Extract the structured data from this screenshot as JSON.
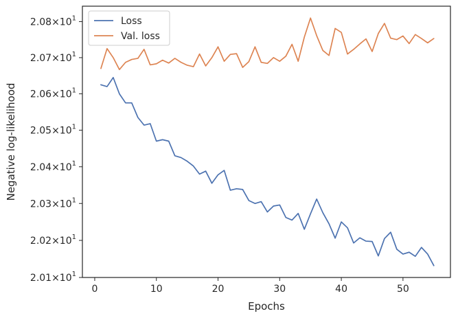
{
  "chart_data": {
    "type": "line",
    "xlabel": "Epochs",
    "ylabel": "Negative log-likelihood",
    "xlim": [
      -2,
      57.7
    ],
    "ylim": [
      20.1,
      20.843
    ],
    "x_ticks": [
      0,
      10,
      20,
      30,
      40,
      50
    ],
    "x_tick_labels": [
      "0",
      "10",
      "20",
      "30",
      "40",
      "50"
    ],
    "y_ticks": [
      20.1,
      20.2,
      20.3,
      20.4,
      20.5,
      20.6,
      20.7,
      20.8
    ],
    "y_tick_labels": [
      {
        "mantissa": "2.01",
        "exponent": "1"
      },
      {
        "mantissa": "2.02",
        "exponent": "1"
      },
      {
        "mantissa": "2.03",
        "exponent": "1"
      },
      {
        "mantissa": "2.04",
        "exponent": "1"
      },
      {
        "mantissa": "2.05",
        "exponent": "1"
      },
      {
        "mantissa": "2.06",
        "exponent": "1"
      },
      {
        "mantissa": "2.07",
        "exponent": "1"
      },
      {
        "mantissa": "2.08",
        "exponent": "1"
      }
    ],
    "y_scale": "log",
    "grid": false,
    "legend_position": "top-left",
    "x": [
      1,
      2,
      3,
      4,
      5,
      6,
      7,
      8,
      9,
      10,
      11,
      12,
      13,
      14,
      15,
      16,
      17,
      18,
      19,
      20,
      21,
      22,
      23,
      24,
      25,
      26,
      27,
      28,
      29,
      30,
      31,
      32,
      33,
      34,
      35,
      36,
      37,
      38,
      39,
      40,
      41,
      42,
      43,
      44,
      45,
      46,
      47,
      48,
      49,
      50,
      51,
      52,
      53,
      54,
      55
    ],
    "series": [
      {
        "name": "Loss",
        "color": "#4c72b0",
        "values": [
          20.625,
          20.62,
          20.645,
          20.6,
          20.575,
          20.575,
          20.535,
          20.514,
          20.518,
          20.47,
          20.474,
          20.47,
          20.43,
          20.425,
          20.415,
          20.402,
          20.38,
          20.388,
          20.355,
          20.378,
          20.39,
          20.336,
          20.34,
          20.338,
          20.308,
          20.3,
          20.305,
          20.277,
          20.293,
          20.296,
          20.262,
          20.255,
          20.273,
          20.23,
          20.272,
          20.312,
          20.275,
          20.245,
          20.206,
          20.25,
          20.234,
          20.193,
          20.207,
          20.198,
          20.197,
          20.158,
          20.205,
          20.222,
          20.176,
          20.163,
          20.168,
          20.157,
          20.181,
          20.163,
          20.132
        ]
      },
      {
        "name": "Val. loss",
        "color": "#dd8452",
        "values": [
          20.67,
          20.725,
          20.7,
          20.667,
          20.687,
          20.695,
          20.698,
          20.723,
          20.68,
          20.683,
          20.693,
          20.685,
          20.698,
          20.687,
          20.679,
          20.675,
          20.71,
          20.677,
          20.7,
          20.73,
          20.69,
          20.709,
          20.711,
          20.673,
          20.689,
          20.73,
          20.687,
          20.684,
          20.7,
          20.69,
          20.704,
          20.737,
          20.69,
          20.757,
          20.81,
          20.761,
          20.72,
          20.706,
          20.781,
          20.77,
          20.71,
          20.723,
          20.738,
          20.752,
          20.717,
          20.767,
          20.795,
          20.754,
          20.75,
          20.76,
          20.739,
          20.764,
          20.753,
          20.741,
          20.753
        ]
      }
    ]
  }
}
